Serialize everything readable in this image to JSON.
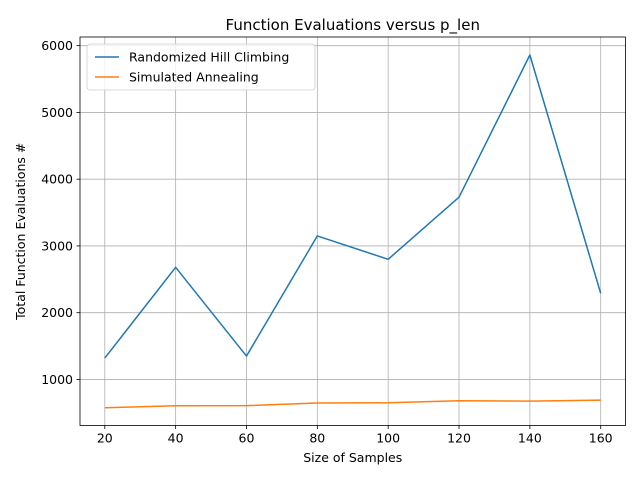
{
  "chart_data": {
    "type": "line",
    "title": "Function Evaluations versus p_len",
    "xlabel": "Size of Samples",
    "ylabel": "Total Function Evaluations #",
    "x": [
      20,
      40,
      60,
      80,
      100,
      120,
      140,
      160
    ],
    "series": [
      {
        "name": "Randomized Hill Climbing",
        "color": "#1f77b4",
        "values": [
          1320,
          2680,
          1350,
          3150,
          2800,
          3730,
          5860,
          2290
        ]
      },
      {
        "name": "Simulated Annealing",
        "color": "#ff7f0e",
        "values": [
          575,
          605,
          607,
          648,
          650,
          680,
          675,
          690
        ]
      }
    ],
    "xlim": [
      13,
      167
    ],
    "ylim": [
      310,
      6130
    ],
    "xticks": [
      20,
      40,
      60,
      80,
      100,
      120,
      140,
      160
    ],
    "yticks": [
      1000,
      2000,
      3000,
      4000,
      5000,
      6000
    ],
    "grid": true,
    "legend": "upper-left"
  }
}
